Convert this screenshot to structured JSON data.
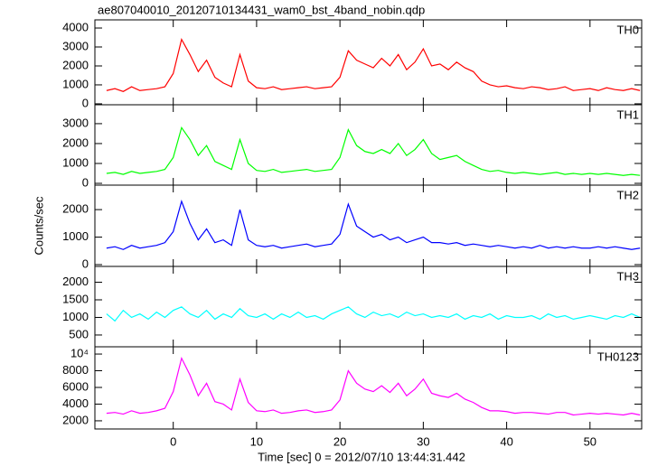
{
  "chart_data": [
    {
      "type": "line",
      "title": "ae807040010_20120710134431_wam0_bst_4band_nobin.qdp",
      "label": "TH0",
      "color": "#ff0000",
      "x": [
        -8,
        -7,
        -6,
        -5,
        -4,
        -3,
        -2,
        -1,
        0,
        1,
        2,
        3,
        4,
        5,
        6,
        7,
        8,
        9,
        10,
        11,
        12,
        13,
        14,
        15,
        16,
        17,
        18,
        19,
        20,
        21,
        22,
        23,
        24,
        25,
        26,
        27,
        28,
        29,
        30,
        31,
        32,
        33,
        34,
        35,
        36,
        37,
        38,
        39,
        40,
        41,
        42,
        43,
        44,
        45,
        46,
        47,
        48,
        49,
        50,
        51,
        52,
        53,
        54,
        55,
        56
      ],
      "values": [
        700,
        800,
        650,
        900,
        700,
        750,
        800,
        900,
        1600,
        3400,
        2600,
        1700,
        2300,
        1400,
        1100,
        900,
        2600,
        1200,
        850,
        800,
        900,
        750,
        800,
        850,
        900,
        800,
        850,
        900,
        1400,
        2800,
        2300,
        2100,
        1900,
        2400,
        2000,
        2600,
        1800,
        2200,
        2900,
        2000,
        2100,
        1800,
        2200,
        1900,
        1700,
        1200,
        1000,
        900,
        950,
        850,
        800,
        900,
        850,
        750,
        800,
        900,
        700,
        750,
        800,
        700,
        850,
        750,
        700,
        800,
        700
      ],
      "xlim": [
        -9.4,
        56.2
      ],
      "ylim": [
        -50,
        4430
      ],
      "yticks": [
        0,
        1000,
        2000,
        3000,
        4000
      ]
    },
    {
      "type": "line",
      "label": "TH1",
      "color": "#00ff00",
      "x": [
        -8,
        -7,
        -6,
        -5,
        -4,
        -3,
        -2,
        -1,
        0,
        1,
        2,
        3,
        4,
        5,
        6,
        7,
        8,
        9,
        10,
        11,
        12,
        13,
        14,
        15,
        16,
        17,
        18,
        19,
        20,
        21,
        22,
        23,
        24,
        25,
        26,
        27,
        28,
        29,
        30,
        31,
        32,
        33,
        34,
        35,
        36,
        37,
        38,
        39,
        40,
        41,
        42,
        43,
        44,
        45,
        46,
        47,
        48,
        49,
        50,
        51,
        52,
        53,
        54,
        55,
        56
      ],
      "values": [
        500,
        550,
        450,
        600,
        500,
        550,
        600,
        700,
        1300,
        2800,
        2200,
        1400,
        1900,
        1100,
        900,
        700,
        2200,
        1000,
        650,
        600,
        700,
        550,
        600,
        650,
        700,
        600,
        650,
        700,
        1300,
        2700,
        1900,
        1600,
        1500,
        1700,
        1500,
        2000,
        1400,
        1700,
        2200,
        1500,
        1200,
        1300,
        1400,
        1100,
        900,
        700,
        600,
        650,
        550,
        500,
        550,
        500,
        450,
        500,
        550,
        450,
        500,
        450,
        500,
        450,
        500,
        450,
        400,
        450,
        400
      ],
      "xlim": [
        -9.4,
        56.2
      ],
      "ylim": [
        -90,
        3950
      ],
      "yticks": [
        0,
        1000,
        2000,
        3000
      ]
    },
    {
      "type": "line",
      "label": "TH2",
      "color": "#0000ff",
      "ylabel": "Counts/sec",
      "x": [
        -8,
        -7,
        -6,
        -5,
        -4,
        -3,
        -2,
        -1,
        0,
        1,
        2,
        3,
        4,
        5,
        6,
        7,
        8,
        9,
        10,
        11,
        12,
        13,
        14,
        15,
        16,
        17,
        18,
        19,
        20,
        21,
        22,
        23,
        24,
        25,
        26,
        27,
        28,
        29,
        30,
        31,
        32,
        33,
        34,
        35,
        36,
        37,
        38,
        39,
        40,
        41,
        42,
        43,
        44,
        45,
        46,
        47,
        48,
        49,
        50,
        51,
        52,
        53,
        54,
        55,
        56
      ],
      "values": [
        600,
        650,
        550,
        700,
        600,
        650,
        700,
        800,
        1200,
        2300,
        1500,
        900,
        1300,
        800,
        900,
        700,
        2000,
        900,
        700,
        650,
        700,
        600,
        650,
        700,
        750,
        650,
        700,
        750,
        1100,
        2200,
        1400,
        1200,
        1000,
        1100,
        900,
        1000,
        800,
        900,
        1000,
        800,
        800,
        750,
        800,
        700,
        750,
        700,
        650,
        700,
        650,
        600,
        650,
        600,
        700,
        600,
        650,
        600,
        650,
        600,
        600,
        650,
        600,
        650,
        600,
        550,
        600
      ],
      "xlim": [
        -9.4,
        56.2
      ],
      "ylim": [
        -65,
        2890
      ],
      "yticks": [
        0,
        1000,
        2000
      ]
    },
    {
      "type": "line",
      "label": "TH3",
      "color": "#00ffff",
      "x": [
        -8,
        -7,
        -6,
        -5,
        -4,
        -3,
        -2,
        -1,
        0,
        1,
        2,
        3,
        4,
        5,
        6,
        7,
        8,
        9,
        10,
        11,
        12,
        13,
        14,
        15,
        16,
        17,
        18,
        19,
        20,
        21,
        22,
        23,
        24,
        25,
        26,
        27,
        28,
        29,
        30,
        31,
        32,
        33,
        34,
        35,
        36,
        37,
        38,
        39,
        40,
        41,
        42,
        43,
        44,
        45,
        46,
        47,
        48,
        49,
        50,
        51,
        52,
        53,
        54,
        55,
        56
      ],
      "values": [
        1100,
        900,
        1200,
        1000,
        1100,
        950,
        1150,
        1000,
        1200,
        1300,
        1100,
        1000,
        1200,
        950,
        1100,
        1000,
        1250,
        1050,
        1000,
        1100,
        950,
        1100,
        1000,
        1150,
        1000,
        1050,
        950,
        1100,
        1200,
        1300,
        1100,
        1000,
        1150,
        1050,
        1100,
        1000,
        1150,
        1050,
        1100,
        1000,
        1050,
        1000,
        1100,
        950,
        1050,
        1000,
        1100,
        950,
        1050,
        1000,
        1000,
        1050,
        950,
        1100,
        1000,
        1050,
        950,
        1000,
        1050,
        1000,
        950,
        1050,
        1000,
        1100,
        1000
      ],
      "xlim": [
        -9.4,
        56.2
      ],
      "ylim": [
        165,
        2450
      ],
      "yticks": [
        500,
        1000,
        1500,
        2000
      ]
    },
    {
      "type": "line",
      "label": "TH0123",
      "color": "#ff00ff",
      "xlabel": "Time [sec] 0 = 2012/07/10 13:44:31.442",
      "x": [
        -8,
        -7,
        -6,
        -5,
        -4,
        -3,
        -2,
        -1,
        0,
        1,
        2,
        3,
        4,
        5,
        6,
        7,
        8,
        9,
        10,
        11,
        12,
        13,
        14,
        15,
        16,
        17,
        18,
        19,
        20,
        21,
        22,
        23,
        24,
        25,
        26,
        27,
        28,
        29,
        30,
        31,
        32,
        33,
        34,
        35,
        36,
        37,
        38,
        39,
        40,
        41,
        42,
        43,
        44,
        45,
        46,
        47,
        48,
        49,
        50,
        51,
        52,
        53,
        54,
        55,
        56
      ],
      "values": [
        2900,
        3000,
        2800,
        3200,
        2900,
        3000,
        3200,
        3500,
        5500,
        9500,
        7500,
        5000,
        6500,
        4300,
        4000,
        3300,
        7000,
        4200,
        3200,
        3100,
        3300,
        2900,
        3000,
        3200,
        3300,
        3000,
        3100,
        3300,
        4500,
        8000,
        6500,
        5800,
        5500,
        6200,
        5400,
        6500,
        5000,
        5800,
        7000,
        5300,
        5000,
        4800,
        5300,
        4600,
        4200,
        3600,
        3200,
        3200,
        3100,
        2900,
        3000,
        3000,
        2900,
        2800,
        3000,
        3000,
        2700,
        2800,
        2900,
        2800,
        2900,
        2800,
        2700,
        2900,
        2700
      ],
      "xlim": [
        -9.4,
        56.2
      ],
      "ylim": [
        1020,
        10870
      ],
      "yticks": [
        2000,
        4000,
        6000,
        8000,
        {
          "value": 10000,
          "label": "10⁴"
        }
      ],
      "xticks": [
        0,
        10,
        20,
        30,
        40,
        50
      ]
    }
  ]
}
